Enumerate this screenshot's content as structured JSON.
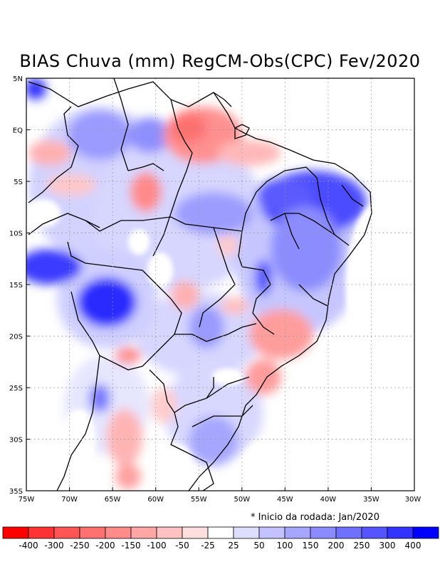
{
  "title": "BIAS Chuva (mm) RegCM-Obs(CPC) Fev/2020",
  "footnote": "* Inicio da rodada: Jan/2020",
  "axes": {
    "lat_ticks": [
      "5N",
      "EQ",
      "5S",
      "10S",
      "15S",
      "20S",
      "25S",
      "30S",
      "35S"
    ],
    "lon_ticks": [
      "75W",
      "70W",
      "65W",
      "60W",
      "55W",
      "50W",
      "45W",
      "40W",
      "35W",
      "30W"
    ]
  },
  "colorbar": {
    "colors": [
      "#ff0000",
      "#ff3333",
      "#ff5555",
      "#ff7070",
      "#ff8b8b",
      "#ffa6a6",
      "#ffc2c2",
      "#ffdede",
      "#ffffff",
      "#dedeff",
      "#c2c2ff",
      "#a6a6ff",
      "#8b8bff",
      "#7070ff",
      "#5555ff",
      "#3333ff",
      "#0000ff"
    ],
    "labels": [
      "-400",
      "-300",
      "-250",
      "-200",
      "-150",
      "-100",
      "-50",
      "-25",
      "25",
      "50",
      "100",
      "150",
      "200",
      "250",
      "300",
      "400"
    ]
  },
  "regions": [
    {
      "name": "north-amapa-dry",
      "sign": "negative"
    },
    {
      "name": "northeast-wet",
      "sign": "positive"
    },
    {
      "name": "center-west-wet",
      "sign": "positive"
    },
    {
      "name": "southeast-dry",
      "sign": "negative"
    }
  ]
}
